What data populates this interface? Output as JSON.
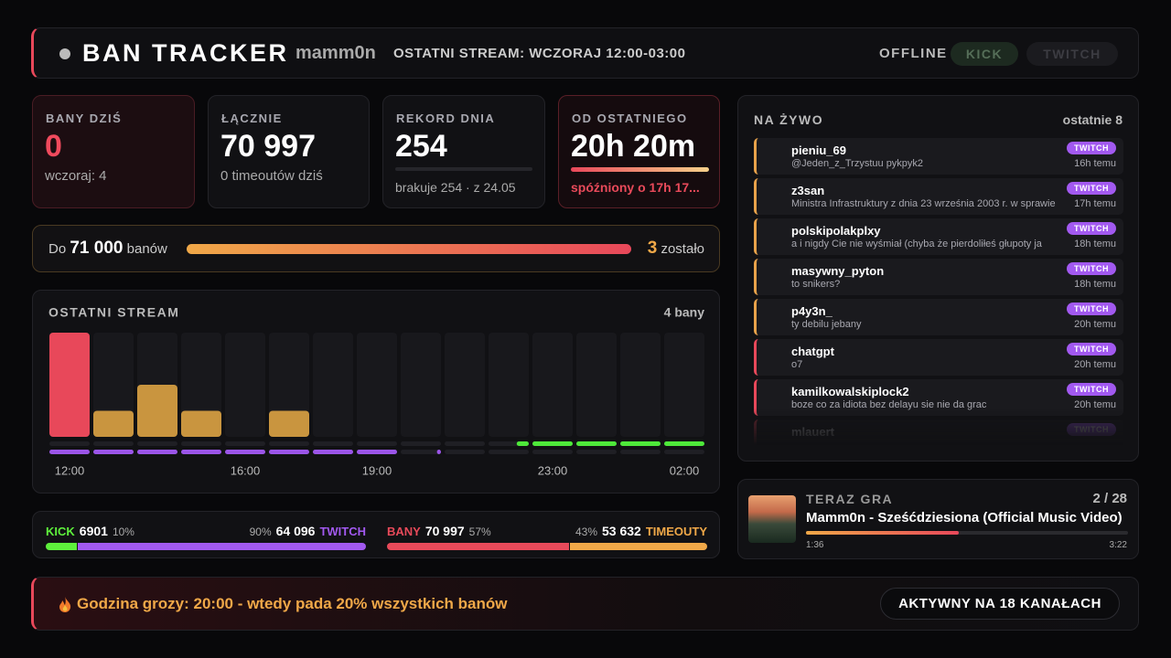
{
  "header": {
    "title": "BAN TRACKER",
    "channel": "mamm0n",
    "last_stream": "OSTATNI STREAM: WCZORAJ 12:00-03:00",
    "status": "OFFLINE",
    "platforms": [
      "KICK",
      "TWITCH"
    ]
  },
  "stats": [
    {
      "label": "BANY DZIŚ",
      "value": "0",
      "sub": "wczoraj: 4"
    },
    {
      "label": "ŁĄCZNIE",
      "value": "70 997",
      "sub": "0 timeoutów dziś"
    },
    {
      "label": "REKORD DNIA",
      "value": "254",
      "sub": "brakuje 254 · z 24.05"
    },
    {
      "label": "OD OSTATNIEGO",
      "value": "20h 20m",
      "sub": "spóźniony o 17h 17..."
    }
  ],
  "goal": {
    "prefix": "Do",
    "target": {
      "value": 71000,
      "label": "71 000"
    },
    "unit": "banów",
    "remaining": 3,
    "remaining_label": "zostało"
  },
  "stream_chart": {
    "type": "bar",
    "title": "OSTATNI STREAM",
    "summary": "4 bany",
    "categories": [
      "12:00",
      null,
      null,
      null,
      "16:00",
      null,
      null,
      "19:00",
      null,
      null,
      null,
      "23:00",
      null,
      null,
      "02:00"
    ],
    "ylim": [
      0,
      100
    ],
    "values": [
      100,
      25,
      50,
      25,
      0,
      25,
      0,
      0,
      0,
      0,
      0,
      0,
      0,
      0,
      0
    ],
    "color": "#c9953f",
    "peak_color": "#e8485a",
    "activity": [
      {
        "color": "#4ee83a",
        "values": [
          0,
          0,
          0,
          0,
          0,
          0,
          0,
          0,
          0,
          0,
          30,
          100,
          100,
          100,
          100
        ]
      },
      {
        "color": "#9b55e8",
        "values": [
          100,
          100,
          100,
          100,
          100,
          100,
          100,
          100,
          10,
          0,
          0,
          0,
          0,
          0,
          0
        ]
      }
    ]
  },
  "split": [
    [
      {
        "name": "KICK",
        "count": 6901,
        "share": {
          "value": 10,
          "label": "10%"
        },
        "color": "#5ef03c"
      },
      {
        "name": "TWITCH",
        "count": {
          "value": 64096,
          "label": "64 096"
        },
        "share": {
          "value": 90,
          "label": "90%"
        },
        "color": "#a259f0"
      }
    ],
    [
      {
        "name": "BANY",
        "count": {
          "value": 70997,
          "label": "70 997"
        },
        "share": {
          "value": 57,
          "label": "57%"
        },
        "color": "#e84a5a"
      },
      {
        "name": "TIMEOUTY",
        "count": {
          "value": 53632,
          "label": "53 632"
        },
        "share": {
          "value": 43,
          "label": "43%"
        },
        "color": "#f0a848"
      }
    ]
  ],
  "live": {
    "title": "NA ŻYWO",
    "scope": "ostatnie 8",
    "items": [
      {
        "name": "pieniu_69",
        "message": "@Jeden_z_Trzystuu pykpyk2",
        "platform": "TWITCH",
        "time": "16h temu",
        "icon": "stopwatch",
        "color": "#e8a24a"
      },
      {
        "name": "z3san",
        "message": "Ministra Infrastruktury z dnia 23 września 2003 r. w sprawie",
        "platform": "TWITCH",
        "time": "17h temu",
        "icon": "stopwatch",
        "color": "#e8a24a"
      },
      {
        "name": "polskipolakplxy",
        "message": "a i nigdy Cie nie wyśmiał (chyba że pierdoliłeś głupoty ja",
        "platform": "TWITCH",
        "time": "18h temu",
        "icon": "stopwatch",
        "color": "#e8a24a"
      },
      {
        "name": "masywny_pyton",
        "message": "to snikers?",
        "platform": "TWITCH",
        "time": "18h temu",
        "icon": "stopwatch",
        "color": "#e8a24a"
      },
      {
        "name": "p4y3n_",
        "message": "ty debilu jebany",
        "platform": "TWITCH",
        "time": "20h temu",
        "icon": "stopwatch",
        "color": "#e8a24a"
      },
      {
        "name": "chatgpt",
        "message": "o7",
        "platform": "TWITCH",
        "time": "20h temu",
        "icon": "no-entry",
        "color": "#e8485a"
      },
      {
        "name": "kamilkowalskiplock2",
        "message": "boze co za idiota bez delayu sie nie da grac",
        "platform": "TWITCH",
        "time": "20h temu",
        "icon": "no-entry",
        "color": "#e8485a"
      },
      {
        "name": "mlauert",
        "platform": "TWITCH",
        "icon": "no-entry",
        "color": "#e8485a"
      }
    ]
  },
  "now_playing": {
    "label": "TERAZ GRA",
    "position": "2 / 28",
    "title": "Mamm0n - Sześćdziesiona (Official Music Video)",
    "elapsed": "1:36",
    "duration": "3:22"
  },
  "footer": {
    "text": "Godzina grozy: 20:00 - wtedy pada 20% wszystkich banów",
    "channels": "AKTYWNY NA 18 KANAŁACH"
  }
}
